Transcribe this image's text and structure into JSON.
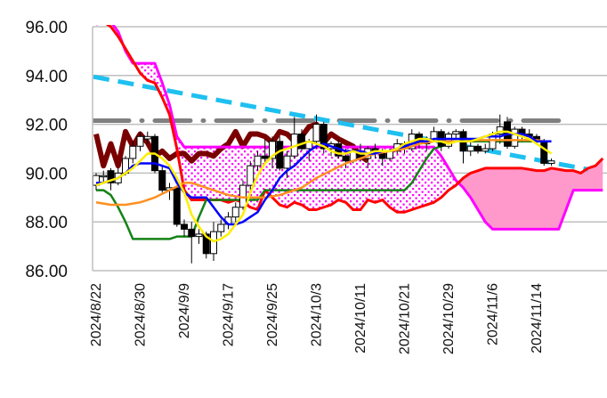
{
  "chart_data": {
    "type": "candlestick-ichimoku",
    "title": "",
    "ylim": [
      86,
      96
    ],
    "y_ticks": [
      "96.00",
      "94.00",
      "92.00",
      "90.00",
      "88.00",
      "86.00"
    ],
    "y_tick_values": [
      96,
      94,
      92,
      90,
      88,
      86
    ],
    "x_tick_labels": [
      "2024/8/22",
      "2024/8/30",
      "2024/9/9",
      "2024/9/17",
      "2024/9/25",
      "2024/10/3",
      "2024/10/11",
      "2024/10/21",
      "2024/10/29",
      "2024/11/6",
      "2024/11/14"
    ],
    "x_tick_index": [
      0,
      6,
      12,
      18,
      24,
      30,
      36,
      42,
      48,
      54,
      60
    ],
    "grid": "horizontal",
    "candles_ohlc": [
      [
        89.5,
        90.0,
        89.3,
        89.9
      ],
      [
        89.9,
        90.1,
        89.6,
        89.9
      ],
      [
        90.1,
        90.2,
        89.3,
        89.6
      ],
      [
        89.6,
        90.2,
        89.5,
        90.0
      ],
      [
        90.0,
        90.7,
        89.9,
        90.6
      ],
      [
        90.6,
        91.3,
        90.4,
        91.1
      ],
      [
        91.1,
        91.7,
        90.9,
        91.5
      ],
      [
        91.4,
        91.7,
        91.2,
        91.5
      ],
      [
        91.5,
        91.6,
        90.0,
        90.1
      ],
      [
        90.1,
        90.3,
        89.2,
        89.3
      ],
      [
        89.3,
        89.6,
        88.9,
        89.4
      ],
      [
        89.4,
        89.5,
        87.8,
        87.9
      ],
      [
        87.9,
        88.1,
        87.4,
        87.7
      ],
      [
        87.7,
        88.0,
        86.3,
        87.4
      ],
      [
        87.4,
        87.7,
        87.1,
        87.5
      ],
      [
        87.5,
        87.6,
        86.5,
        86.7
      ],
      [
        86.7,
        88.0,
        86.4,
        87.6
      ],
      [
        87.6,
        88.1,
        87.4,
        87.9
      ],
      [
        87.9,
        88.4,
        87.7,
        88.2
      ],
      [
        88.2,
        88.8,
        88.0,
        88.6
      ],
      [
        88.6,
        89.7,
        88.5,
        89.5
      ],
      [
        89.5,
        90.5,
        89.3,
        90.3
      ],
      [
        90.3,
        90.9,
        90.1,
        90.7
      ],
      [
        90.7,
        91.4,
        90.4,
        90.6
      ],
      [
        90.6,
        91.5,
        90.2,
        91.3
      ],
      [
        91.3,
        91.5,
        90.1,
        90.2
      ],
      [
        90.2,
        90.9,
        89.8,
        90.7
      ],
      [
        90.7,
        92.3,
        90.6,
        91.6
      ],
      [
        91.6,
        91.8,
        90.9,
        91.0
      ],
      [
        91.0,
        91.4,
        90.5,
        91.3
      ],
      [
        91.3,
        92.4,
        91.0,
        92.0
      ],
      [
        92.0,
        92.1,
        90.8,
        91.0
      ],
      [
        91.0,
        91.3,
        90.7,
        91.2
      ],
      [
        91.2,
        91.4,
        90.6,
        90.7
      ],
      [
        90.7,
        91.0,
        90.2,
        90.5
      ],
      [
        90.5,
        91.0,
        90.4,
        90.9
      ],
      [
        90.9,
        91.2,
        90.5,
        90.6
      ],
      [
        90.6,
        91.1,
        90.2,
        91.0
      ],
      [
        91.0,
        91.2,
        90.6,
        90.8
      ],
      [
        90.8,
        91.0,
        90.3,
        90.6
      ],
      [
        90.6,
        91.0,
        90.5,
        90.9
      ],
      [
        90.9,
        91.4,
        90.8,
        91.2
      ],
      [
        91.2,
        91.3,
        90.8,
        91.0
      ],
      [
        91.0,
        91.8,
        90.9,
        91.6
      ],
      [
        91.6,
        91.7,
        91.0,
        91.2
      ],
      [
        91.2,
        91.5,
        90.9,
        91.4
      ],
      [
        91.4,
        91.9,
        91.3,
        91.7
      ],
      [
        91.7,
        91.8,
        90.9,
        91.1
      ],
      [
        91.1,
        91.7,
        91.0,
        91.6
      ],
      [
        91.6,
        91.8,
        91.4,
        91.7
      ],
      [
        91.7,
        91.8,
        90.4,
        90.9
      ],
      [
        90.9,
        91.3,
        90.7,
        91.1
      ],
      [
        91.1,
        91.2,
        90.8,
        90.9
      ],
      [
        90.9,
        91.2,
        90.8,
        91.0
      ],
      [
        91.0,
        91.7,
        90.9,
        91.6
      ],
      [
        91.6,
        92.4,
        91.2,
        91.9
      ],
      [
        92.1,
        92.3,
        91.0,
        91.1
      ],
      [
        91.1,
        91.9,
        91.0,
        91.8
      ],
      [
        91.8,
        91.9,
        91.3,
        91.6
      ],
      [
        91.6,
        91.8,
        91.3,
        91.5
      ],
      [
        91.5,
        91.6,
        91.2,
        91.4
      ],
      [
        91.3,
        91.4,
        90.3,
        90.4
      ],
      [
        90.4,
        90.6,
        90.3,
        90.5
      ]
    ],
    "series": [
      {
        "name": "tenkan",
        "color": "#0000ff",
        "values": [
          89.6,
          89.6,
          89.7,
          89.8,
          90.0,
          90.3,
          90.4,
          90.4,
          90.4,
          90.3,
          90.2,
          89.6,
          89.2,
          89.0,
          89.0,
          89.0,
          88.6,
          88.2,
          87.9,
          87.9,
          88.0,
          88.2,
          88.4,
          88.9,
          89.3,
          89.8,
          90.1,
          90.3,
          90.6,
          90.9,
          91.1,
          91.2,
          91.1,
          91.0,
          90.9,
          90.9,
          90.9,
          90.8,
          90.8,
          90.9,
          90.9,
          91.0,
          91.1,
          91.2,
          91.3,
          91.3,
          91.4,
          91.4,
          91.4,
          91.4,
          91.4,
          91.4,
          91.4,
          91.5,
          91.5,
          91.5,
          91.6,
          91.6,
          91.6,
          91.5,
          91.3,
          91.3,
          91.3
        ]
      },
      {
        "name": "kijun",
        "color": "#148214",
        "values": [
          89.3,
          89.3,
          89.1,
          88.6,
          88.0,
          87.3,
          87.3,
          87.3,
          87.3,
          87.3,
          87.3,
          87.4,
          87.4,
          87.4,
          88.2,
          88.9,
          88.9,
          88.9,
          88.9,
          88.9,
          88.9,
          88.9,
          88.9,
          89.3,
          89.3,
          89.3,
          89.3,
          89.3,
          89.3,
          89.3,
          89.3,
          89.3,
          89.3,
          89.3,
          89.3,
          89.3,
          89.3,
          89.3,
          89.3,
          89.3,
          89.3,
          89.3,
          89.3,
          89.6,
          90.1,
          90.6,
          91.0,
          91.1,
          91.2,
          91.3,
          91.3,
          91.3,
          91.3,
          91.3,
          91.3,
          91.3,
          91.3,
          91.3,
          91.3,
          91.3,
          91.3,
          91.3,
          91.3
        ]
      },
      {
        "name": "ma-short",
        "color": "#ffee00",
        "values": [
          89.5,
          89.6,
          89.7,
          89.8,
          90.0,
          90.2,
          90.5,
          90.8,
          90.8,
          90.6,
          90.3,
          89.8,
          89.2,
          88.3,
          87.8,
          87.4,
          87.2,
          87.3,
          87.5,
          87.9,
          88.3,
          89.2,
          89.9,
          90.4,
          90.7,
          90.9,
          91.0,
          91.1,
          91.2,
          91.3,
          91.2,
          91.1,
          90.9,
          90.8,
          90.8,
          90.9,
          90.8,
          90.8,
          90.9,
          90.9,
          90.9,
          91.0,
          91.2,
          91.3,
          91.4,
          91.4,
          91.3,
          91.3,
          91.2,
          91.3,
          91.3,
          91.3,
          91.4,
          91.5,
          91.6,
          91.7,
          91.7,
          91.6,
          91.5,
          91.4,
          91.2,
          91.0,
          90.8
        ]
      },
      {
        "name": "ma-long",
        "color": "#ff9020",
        "values": [
          88.8,
          88.75,
          88.7,
          88.7,
          88.7,
          88.75,
          88.8,
          88.9,
          89.0,
          89.15,
          89.3,
          89.45,
          89.6,
          89.6,
          89.5,
          89.4,
          89.3,
          89.2,
          89.1,
          89.05,
          89.0,
          89.0,
          89.0,
          89.0,
          89.05,
          89.1,
          89.2,
          89.3,
          89.4,
          89.6,
          89.8,
          89.95,
          90.1,
          90.25,
          90.4,
          90.5,
          90.6,
          90.7,
          90.8,
          90.85,
          90.9,
          90.95,
          91.0,
          91.1,
          91.2,
          91.25,
          91.3,
          91.3,
          91.3,
          91.3,
          91.3,
          91.35,
          91.35,
          91.35,
          91.35,
          91.35,
          91.35,
          91.35,
          91.35,
          91.35,
          91.35,
          91.3,
          91.3
        ]
      },
      {
        "name": "chikou",
        "color": "#7a0000",
        "values": [
          91.6,
          90.3,
          91.2,
          90.3,
          91.7,
          91.1,
          91.6,
          91.25,
          90.7,
          90.9,
          90.6,
          90.8,
          90.8,
          90.5,
          90.8,
          90.8,
          90.7,
          91.0,
          91.2,
          91.7,
          91.1,
          91.6,
          91.6,
          91.5,
          91.25,
          91.7,
          91.6,
          91.3,
          91.5,
          91.9,
          92.0,
          91.25,
          91.6,
          91.4,
          91.25,
          91.1,
          90.7,
          90.5
        ]
      },
      {
        "name": "senkou-a",
        "color": "#ff0000",
        "values": [
          96.3,
          96.2,
          96.0,
          95.6,
          95.1,
          94.6,
          94.1,
          93.8,
          93.7,
          93.1,
          92.4,
          91.0,
          89.3,
          88.9,
          88.9,
          88.9,
          88.9,
          88.9,
          88.8,
          88.9,
          88.8,
          88.6,
          88.5,
          89.3,
          89.0,
          88.7,
          88.6,
          88.8,
          88.7,
          88.5,
          88.5,
          88.6,
          88.7,
          88.9,
          88.8,
          88.5,
          88.5,
          88.9,
          88.8,
          88.9,
          88.6,
          88.4,
          88.4,
          88.5,
          88.6,
          88.7,
          88.8,
          89.0,
          89.3,
          89.5,
          89.8,
          90.0,
          90.1,
          90.2,
          90.2,
          90.2,
          90.2,
          90.2,
          90.2,
          90.15,
          90.1,
          90.1,
          90.2,
          90.15,
          90.1,
          90.1,
          90.0,
          90.2,
          90.3,
          90.6
        ]
      },
      {
        "name": "senkou-b",
        "color": "#ff00ff",
        "values": [
          96.1,
          96.2,
          96.2,
          95.8,
          95.0,
          94.5,
          94.5,
          94.5,
          94.5,
          93.7,
          92.8,
          91.5,
          91.07,
          91.07,
          91.07,
          91.07,
          91.07,
          91.07,
          91.07,
          91.07,
          91.07,
          91.07,
          91.07,
          91.07,
          91.07,
          91.07,
          91.07,
          91.07,
          91.07,
          91.07,
          91.07,
          91.07,
          91.07,
          91.07,
          91.07,
          91.07,
          91.07,
          91.07,
          91.07,
          91.07,
          91.07,
          91.07,
          91.07,
          91.07,
          91.07,
          91.07,
          91.07,
          90.7,
          90.2,
          89.7,
          89.4,
          89.0,
          88.5,
          88.0,
          87.7,
          87.7,
          87.7,
          87.7,
          87.7,
          87.7,
          87.7,
          87.7,
          87.7,
          87.7,
          88.5,
          89.3,
          89.3,
          89.3,
          89.3,
          89.3
        ]
      }
    ],
    "cloud_colors": {
      "bearish_dots": "#ff00ff",
      "bullish_fill": "#ff99cc"
    },
    "trendline": {
      "name": "downtrend",
      "color": "#1ec0f0",
      "from": [
        0,
        93.95
      ],
      "to": [
        67,
        90.15
      ]
    },
    "resistance": {
      "name": "horizontal-resistance",
      "color": "#808080",
      "value": 92.15,
      "from": 0,
      "to": 63
    }
  }
}
